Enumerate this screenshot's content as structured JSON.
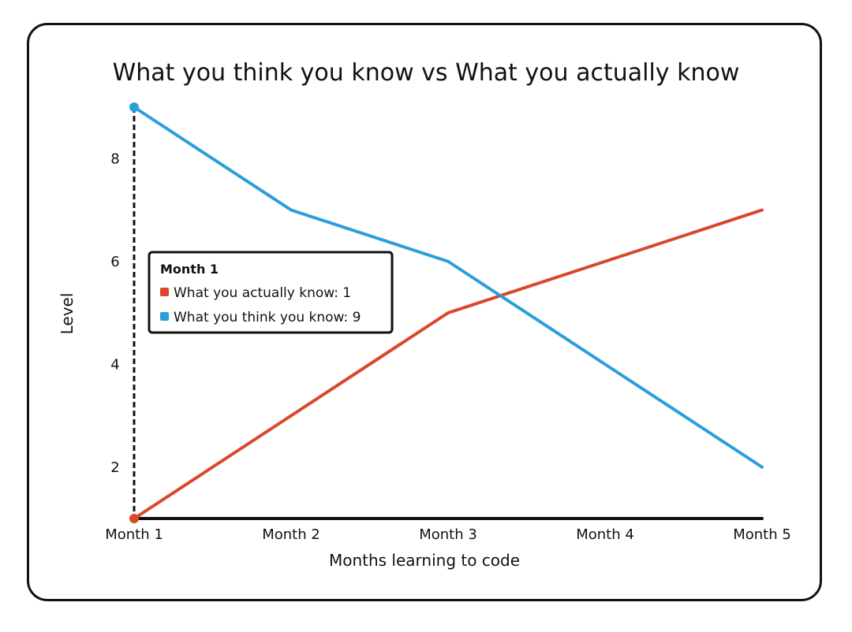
{
  "chart_data": {
    "type": "line",
    "title": "What you think you know vs What you actually know",
    "xlabel": "Months learning to code",
    "ylabel": "Level",
    "categories": [
      "Month 1",
      "Month 2",
      "Month 3",
      "Month 4",
      "Month 5"
    ],
    "y_ticks": [
      2,
      4,
      6,
      8
    ],
    "ylim": [
      1,
      9
    ],
    "grid": false,
    "series": [
      {
        "name": "What you actually know",
        "color": "#d9482b",
        "values": [
          1,
          3,
          5,
          6,
          7
        ]
      },
      {
        "name": "What you think you know",
        "color": "#2b9fd9",
        "values": [
          9,
          7,
          6,
          4,
          2
        ]
      }
    ],
    "tooltip": {
      "title": "Month 1",
      "items": [
        {
          "label": "What you actually know: 1",
          "color": "#d9482b"
        },
        {
          "label": "What you think you know: 9",
          "color": "#2b9fd9"
        }
      ]
    },
    "hover_category_index": 0
  }
}
